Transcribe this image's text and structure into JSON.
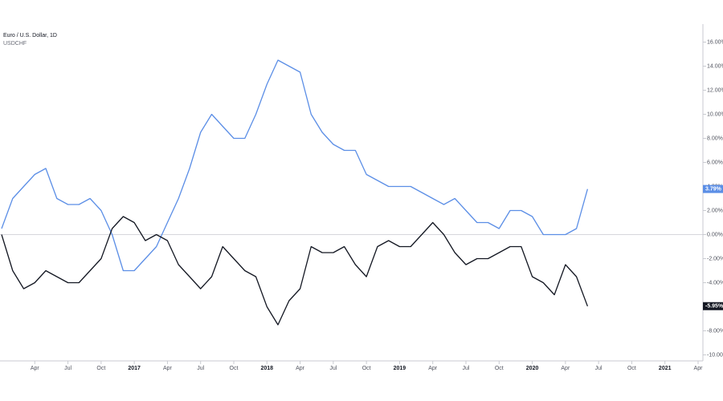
{
  "chart_data": {
    "type": "line",
    "x": [
      "2016-01",
      "2016-02",
      "2016-03",
      "2016-04",
      "2016-05",
      "2016-06",
      "2016-07",
      "2016-08",
      "2016-09",
      "2016-10",
      "2016-11",
      "2016-12",
      "2017-01",
      "2017-02",
      "2017-03",
      "2017-04",
      "2017-05",
      "2017-06",
      "2017-07",
      "2017-08",
      "2017-09",
      "2017-10",
      "2017-11",
      "2017-12",
      "2018-01",
      "2018-02",
      "2018-03",
      "2018-04",
      "2018-05",
      "2018-06",
      "2018-07",
      "2018-08",
      "2018-09",
      "2018-10",
      "2018-11",
      "2018-12",
      "2019-01",
      "2019-02",
      "2019-03",
      "2019-04",
      "2019-05",
      "2019-06",
      "2019-07",
      "2019-08",
      "2019-09",
      "2019-10",
      "2019-11",
      "2019-12",
      "2020-01",
      "2020-02",
      "2020-03",
      "2020-04",
      "2020-05",
      "2020-06"
    ],
    "series": [
      {
        "name": "Euro / U.S. Dollar, 1D",
        "color": "#5b8ee6",
        "last_value_label": "3.79%",
        "values": [
          0.5,
          3,
          4,
          5,
          5.5,
          3,
          2.5,
          2.5,
          3,
          2,
          0,
          -3,
          -3,
          -2,
          -1,
          1,
          3,
          5.5,
          8.5,
          10,
          9,
          8,
          8,
          10,
          12.5,
          14.5,
          14,
          13.5,
          10,
          8.5,
          7.5,
          7,
          7,
          5,
          4.5,
          4,
          4,
          4,
          3.5,
          3,
          2.5,
          3,
          2,
          1,
          1,
          0.5,
          2,
          2,
          1.5,
          0,
          0,
          0,
          0.5,
          3.79
        ]
      },
      {
        "name": "USDCHF",
        "color": "#131722",
        "last_value_label": "-5.95%",
        "values": [
          0,
          -3,
          -4.5,
          -4,
          -3,
          -3.5,
          -4,
          -4,
          -3,
          -2,
          0.5,
          1.5,
          1,
          -0.5,
          0,
          -0.5,
          -2.5,
          -3.5,
          -4.5,
          -3.5,
          -1,
          -2,
          -3,
          -3.5,
          -6,
          -7.5,
          -5.5,
          -4.5,
          -1,
          -1.5,
          -1.5,
          -1,
          -2.5,
          -3.5,
          -1,
          -0.5,
          -1,
          -1,
          0,
          1,
          0,
          -1.5,
          -2.5,
          -2,
          -2,
          -1.5,
          -1,
          -1,
          -3.5,
          -4,
          -5,
          -2.5,
          -3.5,
          -5.95
        ]
      }
    ],
    "xlim": [
      "2016-01",
      "2021-04"
    ],
    "xticks": [
      {
        "value": "2016-04",
        "label": "Apr"
      },
      {
        "value": "2016-07",
        "label": "Jul"
      },
      {
        "value": "2016-10",
        "label": "Oct"
      },
      {
        "value": "2017-01",
        "label": "2017"
      },
      {
        "value": "2017-04",
        "label": "Apr"
      },
      {
        "value": "2017-07",
        "label": "Jul"
      },
      {
        "value": "2017-10",
        "label": "Oct"
      },
      {
        "value": "2018-01",
        "label": "2018"
      },
      {
        "value": "2018-04",
        "label": "Apr"
      },
      {
        "value": "2018-07",
        "label": "Jul"
      },
      {
        "value": "2018-10",
        "label": "Oct"
      },
      {
        "value": "2019-01",
        "label": "2019"
      },
      {
        "value": "2019-04",
        "label": "Apr"
      },
      {
        "value": "2019-07",
        "label": "Jul"
      },
      {
        "value": "2019-10",
        "label": "Oct"
      },
      {
        "value": "2020-01",
        "label": "2020"
      },
      {
        "value": "2020-04",
        "label": "Apr"
      },
      {
        "value": "2020-07",
        "label": "Jul"
      },
      {
        "value": "2020-10",
        "label": "Oct"
      },
      {
        "value": "2021-01",
        "label": "2021"
      },
      {
        "value": "2021-04",
        "label": "Apr"
      }
    ],
    "ylim": [
      -10.5,
      17.5
    ],
    "yticks": [
      {
        "value": 16,
        "label": "16.00%"
      },
      {
        "value": 14,
        "label": "14.00%"
      },
      {
        "value": 12,
        "label": "12.00%"
      },
      {
        "value": 10,
        "label": "10.00%"
      },
      {
        "value": 8,
        "label": "8.00%"
      },
      {
        "value": 6,
        "label": "6.00%"
      },
      {
        "value": 4,
        "label": "4.00%"
      },
      {
        "value": 2,
        "label": "2.00%"
      },
      {
        "value": 0,
        "label": "0.00%"
      },
      {
        "value": -2,
        "label": "-2.00%"
      },
      {
        "value": -4,
        "label": "-4.00%"
      },
      {
        "value": -6,
        "label": "-6.00%"
      },
      {
        "value": -8,
        "label": "-8.00%"
      },
      {
        "value": -10,
        "label": "-10.00%"
      }
    ],
    "grid": false
  }
}
